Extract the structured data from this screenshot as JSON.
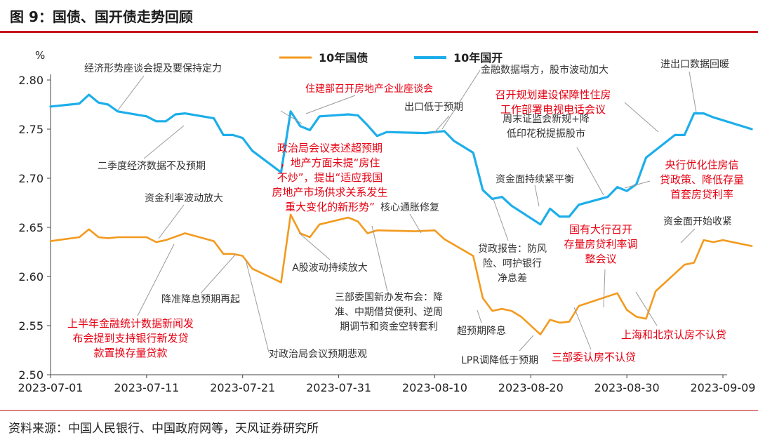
{
  "figure": {
    "title": "图 9：国债、国开债走势回顾",
    "source": "资料来源：中国人民银行、中国政府网等，天风证券研究所"
  },
  "chart_data": {
    "type": "line",
    "unit_label": "%",
    "ylim": [
      2.5,
      2.8
    ],
    "yticks": [
      2.5,
      2.55,
      2.6,
      2.65,
      2.7,
      2.75,
      2.8
    ],
    "ytick_labels": [
      "2.50",
      "2.55",
      "2.60",
      "2.65",
      "2.70",
      "2.75",
      "2.80"
    ],
    "x_start": "2023-07-01",
    "x_end": "2023-09-09",
    "xticks": [
      "2023-07-01",
      "2023-07-11",
      "2023-07-21",
      "2023-07-31",
      "2023-08-10",
      "2023-08-20",
      "2023-08-30",
      "2023-09-09"
    ],
    "series": [
      {
        "name": "10年国债",
        "color": "#f39a1e",
        "points": [
          [
            0,
            2.636
          ],
          [
            3,
            2.64
          ],
          [
            4,
            2.648
          ],
          [
            5,
            2.64
          ],
          [
            6,
            2.639
          ],
          [
            7,
            2.64
          ],
          [
            10,
            2.64
          ],
          [
            11,
            2.635
          ],
          [
            12,
            2.637
          ],
          [
            14,
            2.644
          ],
          [
            17,
            2.636
          ],
          [
            18,
            2.623
          ],
          [
            19,
            2.623
          ],
          [
            20,
            2.621
          ],
          [
            21,
            2.608
          ],
          [
            24,
            2.594
          ],
          [
            25,
            2.663
          ],
          [
            26,
            2.644
          ],
          [
            27,
            2.64
          ],
          [
            28,
            2.653
          ],
          [
            31,
            2.66
          ],
          [
            32,
            2.656
          ],
          [
            33,
            2.644
          ],
          [
            34,
            2.647
          ],
          [
            38,
            2.646
          ],
          [
            40,
            2.647
          ],
          [
            41,
            2.638
          ],
          [
            44,
            2.621
          ],
          [
            45,
            2.578
          ],
          [
            46,
            2.565
          ],
          [
            47,
            2.567
          ],
          [
            48,
            2.565
          ],
          [
            49,
            2.559
          ],
          [
            51,
            2.541
          ],
          [
            52,
            2.556
          ],
          [
            53,
            2.553
          ],
          [
            54,
            2.554
          ],
          [
            55,
            2.57
          ],
          [
            59,
            2.583
          ],
          [
            60,
            2.566
          ],
          [
            61,
            2.559
          ],
          [
            62,
            2.557
          ],
          [
            63,
            2.585
          ],
          [
            66,
            2.612
          ],
          [
            67,
            2.614
          ],
          [
            68,
            2.637
          ],
          [
            69,
            2.635
          ],
          [
            70,
            2.637
          ],
          [
            73,
            2.631
          ]
        ]
      },
      {
        "name": "10年国开",
        "color": "#1daeea",
        "points": [
          [
            0,
            2.773
          ],
          [
            3,
            2.776
          ],
          [
            4,
            2.785
          ],
          [
            5,
            2.777
          ],
          [
            6,
            2.775
          ],
          [
            7,
            2.768
          ],
          [
            10,
            2.763
          ],
          [
            11,
            2.758
          ],
          [
            12,
            2.758
          ],
          [
            13,
            2.765
          ],
          [
            14,
            2.766
          ],
          [
            17,
            2.761
          ],
          [
            18,
            2.744
          ],
          [
            19,
            2.744
          ],
          [
            20,
            2.741
          ],
          [
            21,
            2.728
          ],
          [
            24,
            2.706
          ],
          [
            25,
            2.768
          ],
          [
            26,
            2.753
          ],
          [
            27,
            2.749
          ],
          [
            28,
            2.763
          ],
          [
            31,
            2.765
          ],
          [
            32,
            2.764
          ],
          [
            33,
            2.754
          ],
          [
            34,
            2.743
          ],
          [
            35,
            2.747
          ],
          [
            39,
            2.746
          ],
          [
            41,
            2.748
          ],
          [
            42,
            2.738
          ],
          [
            44,
            2.726
          ],
          [
            45,
            2.688
          ],
          [
            46,
            2.679
          ],
          [
            47,
            2.681
          ],
          [
            48,
            2.672
          ],
          [
            51,
            2.653
          ],
          [
            52,
            2.669
          ],
          [
            53,
            2.661
          ],
          [
            54,
            2.661
          ],
          [
            55,
            2.673
          ],
          [
            58,
            2.681
          ],
          [
            59,
            2.691
          ],
          [
            60,
            2.687
          ],
          [
            61,
            2.694
          ],
          [
            62,
            2.721
          ],
          [
            65,
            2.744
          ],
          [
            66,
            2.744
          ],
          [
            67,
            2.766
          ],
          [
            68,
            2.766
          ],
          [
            69,
            2.762
          ],
          [
            73,
            2.75
          ]
        ]
      }
    ],
    "annotations": [
      {
        "text": "经济形势座谈会提及要保持定力",
        "color": "#333333"
      },
      {
        "text": "二季度经济数据不及预期",
        "color": "#333333"
      },
      {
        "text": "资金利率波动放大",
        "color": "#333333"
      },
      {
        "text": "降准降息预期再起",
        "color": "#333333"
      },
      {
        "text": "上半年金融统计数据新闻发布会提到支持银行新发贷款置换存量贷款",
        "color": "#e60012"
      },
      {
        "text": "对政治局会议预期悲观",
        "color": "#333333"
      },
      {
        "text": "住建部召开房地产企业座谈会",
        "color": "#e60012"
      },
      {
        "text": "政治局会议表述超预期，地产方面未提“房住不炒”，提出“适应我国房地产市场供求关系发生重大变化的新形势”",
        "color": "#e60012"
      },
      {
        "text": "A股波动持续放大",
        "color": "#333333"
      },
      {
        "text": "核心通胀修复",
        "color": "#333333"
      },
      {
        "text": "三部委国新办发布会：降准、中期借贷便利、逆周期调节和资金空转套利",
        "color": "#333333"
      },
      {
        "text": "出口低于预期",
        "color": "#333333"
      },
      {
        "text": "金融数据塌方，股市波动加大",
        "color": "#333333"
      },
      {
        "text": "超预期降息",
        "color": "#333333"
      },
      {
        "text": "LPR调降低于预期",
        "color": "#333333"
      },
      {
        "text": "贷政报告：防风险、呵护银行净息差",
        "color": "#333333"
      },
      {
        "text": "资金面持续紧平衡",
        "color": "#333333"
      },
      {
        "text": "周末证监会新规+降低印花税提振股市",
        "color": "#333333"
      },
      {
        "text": "召开规划建设保障性住房工作部署电视电话会议",
        "color": "#e60012"
      },
      {
        "text": "进出口数据回暖",
        "color": "#333333"
      },
      {
        "text": "央行优化住房信贷政策、降低存量首套房贷利率",
        "color": "#e60012"
      },
      {
        "text": "国有大行召开存量房贷利率调整会议",
        "color": "#e60012"
      },
      {
        "text": "资金面开始收紧",
        "color": "#333333"
      },
      {
        "text": "三部委认房不认贷",
        "color": "#e60012"
      },
      {
        "text": "上海和北京认房不认贷",
        "color": "#e60012"
      }
    ]
  }
}
